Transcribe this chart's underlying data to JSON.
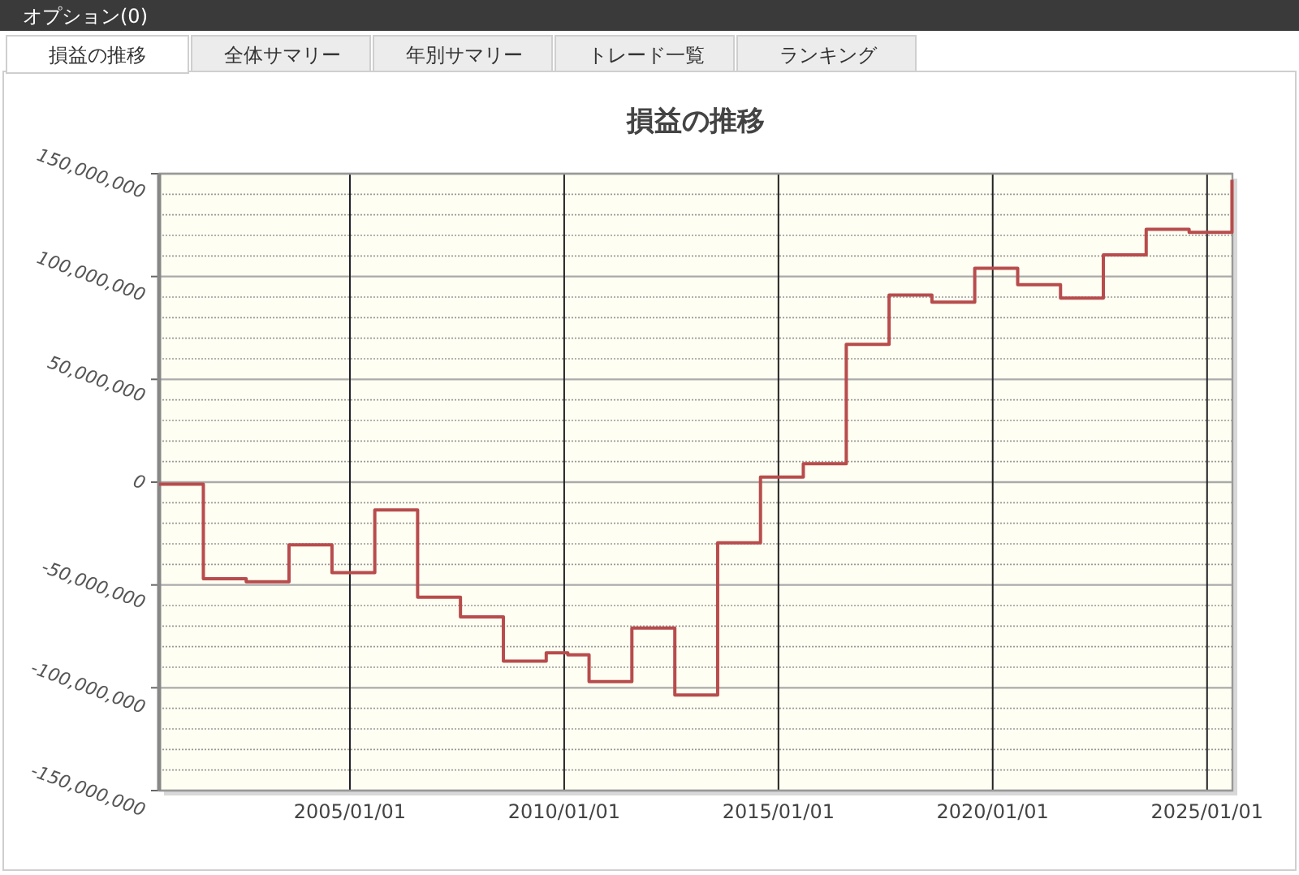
{
  "chart_data": {
    "type": "step",
    "title": "損益の推移",
    "annotations": [
      "オプション(0)",
      "損益の推移",
      "全体サマリー",
      "年別サマリー",
      "トレード一覧",
      "ランキング"
    ],
    "x": [
      "2000-07-20",
      "2001-08-01",
      "2002-08-01",
      "2003-08-01",
      "2004-08-01",
      "2005-08-01",
      "2006-08-01",
      "2007-08-01",
      "2008-08-01",
      "2009-08-01",
      "2010-02-01",
      "2010-08-01",
      "2011-08-01",
      "2012-08-01",
      "2013-08-01",
      "2014-08-01",
      "2015-08-01",
      "2016-08-01",
      "2017-08-01",
      "2018-08-01",
      "2019-08-01",
      "2020-08-01",
      "2021-08-01",
      "2022-08-01",
      "2023-08-01",
      "2024-08-01",
      "2025-08-01"
    ],
    "series": [
      {
        "color": "#b84c4c",
        "values": [
          -1000000,
          -47000000,
          -48500000,
          -30500000,
          -44000000,
          -13500000,
          -56000000,
          -65500000,
          -87000000,
          -83000000,
          -84000000,
          -97000000,
          -71000000,
          -103500000,
          -29500000,
          2500000,
          9000000,
          67000000,
          91000000,
          87500000,
          104000000,
          96000000,
          89500000,
          110500000,
          123000000,
          121500000,
          147000000
        ]
      }
    ],
    "xlim": [
      "2000-07-20",
      "2025-08-05"
    ],
    "xticks": [
      {
        "value": "2005-01-01",
        "label": "2005/01/01"
      },
      {
        "value": "2010-01-01",
        "label": "2010/01/01"
      },
      {
        "value": "2015-01-01",
        "label": "2015/01/01"
      },
      {
        "value": "2020-01-01",
        "label": "2020/01/01"
      },
      {
        "value": "2025-01-01",
        "label": "2025/01/01"
      }
    ],
    "ylim": [
      -150000000,
      150000000
    ],
    "yticks": [
      {
        "value": -150000000,
        "label": "-150,000,000"
      },
      {
        "value": -100000000,
        "label": "-100,000,000"
      },
      {
        "value": -50000000,
        "label": "-50,000,000"
      },
      {
        "value": 0,
        "label": "0"
      },
      {
        "value": 50000000,
        "label": "50,000,000"
      },
      {
        "value": 100000000,
        "label": "100,000,000"
      },
      {
        "value": 150000000,
        "label": "150,000,000"
      }
    ],
    "grid": true
  }
}
